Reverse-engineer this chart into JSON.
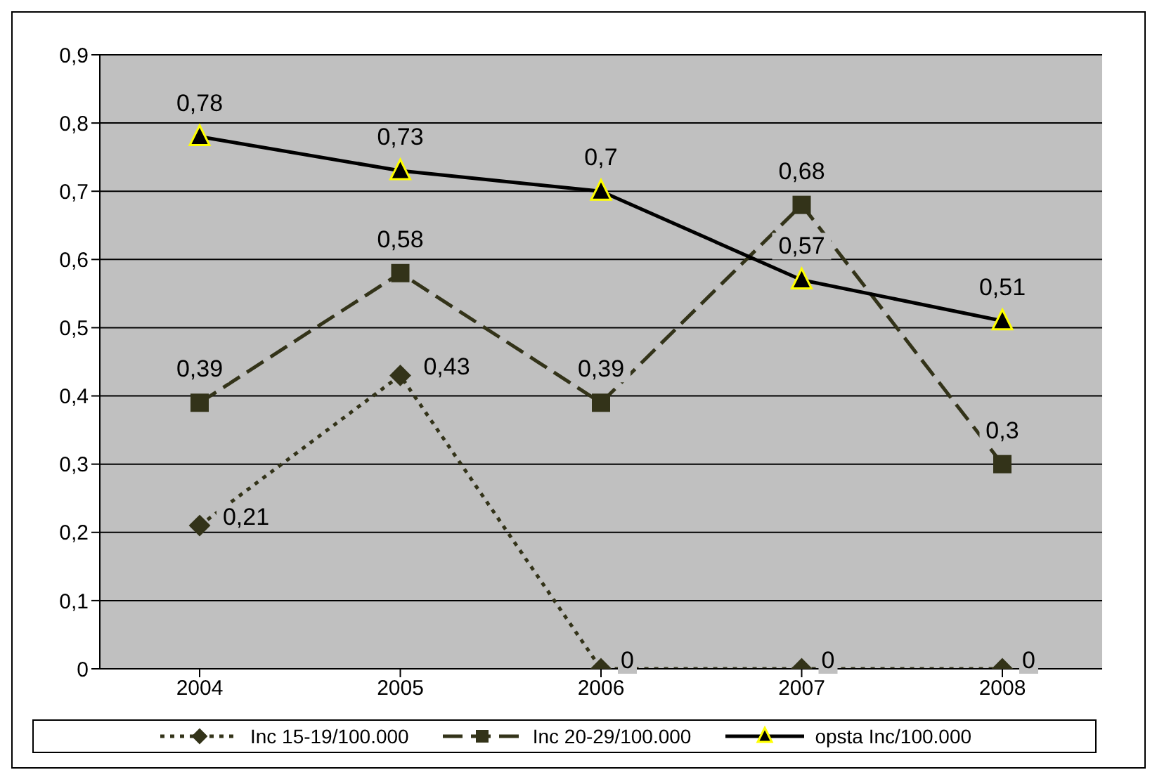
{
  "chart_data": {
    "type": "line",
    "categories": [
      "2004",
      "2005",
      "2006",
      "2007",
      "2008"
    ],
    "series": [
      {
        "name": "Inc 15-19/100.000",
        "color": "#333319",
        "values": [
          0.21,
          0.43,
          0,
          0,
          0
        ],
        "value_labels": [
          "0,21",
          "0,43",
          "0",
          "0",
          "0"
        ],
        "marker": "diamond",
        "line_style": "dotted"
      },
      {
        "name": "Inc 20-29/100.000",
        "color": "#333319",
        "values": [
          0.39,
          0.58,
          0.39,
          0.68,
          0.3
        ],
        "value_labels": [
          "0,39",
          "0,58",
          "0,39",
          "0,68",
          "0,3"
        ],
        "marker": "square",
        "line_style": "dashed"
      },
      {
        "name": "opsta Inc/100.000",
        "color": "#000000",
        "values": [
          0.78,
          0.73,
          0.7,
          0.57,
          0.51
        ],
        "value_labels": [
          "0,78",
          "0,73",
          "0,7",
          "0,57",
          "0,51"
        ],
        "marker": "triangle",
        "line_style": "solid"
      }
    ],
    "ylim": [
      0,
      0.9
    ],
    "yticks": [
      {
        "value": 0,
        "label": "0"
      },
      {
        "value": 0.1,
        "label": "0,1"
      },
      {
        "value": 0.2,
        "label": "0,2"
      },
      {
        "value": 0.3,
        "label": "0,3"
      },
      {
        "value": 0.4,
        "label": "0,4"
      },
      {
        "value": 0.5,
        "label": "0,5"
      },
      {
        "value": 0.6,
        "label": "0,6"
      },
      {
        "value": 0.7,
        "label": "0,7"
      },
      {
        "value": 0.8,
        "label": "0,8"
      },
      {
        "value": 0.9,
        "label": "0,9"
      }
    ],
    "grid": "y",
    "legend": "bottom"
  }
}
